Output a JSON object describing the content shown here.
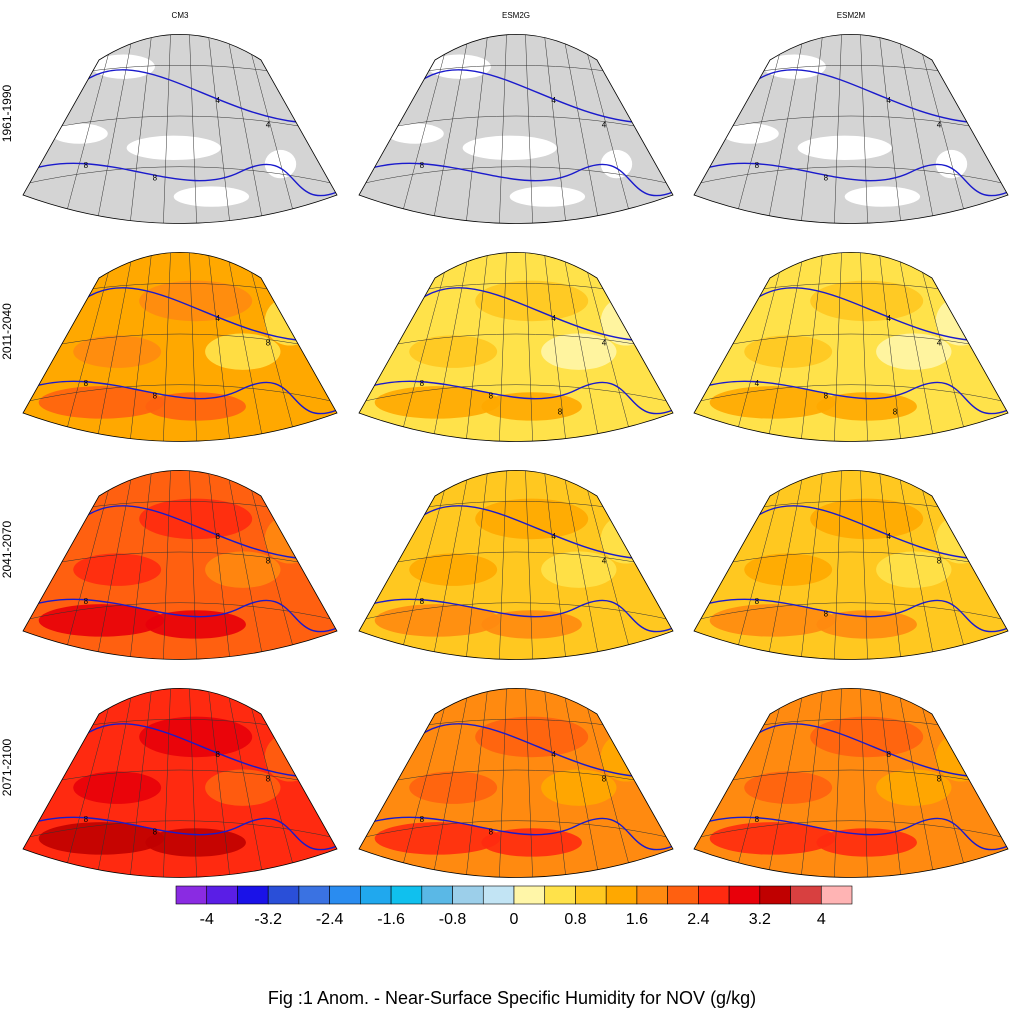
{
  "figure": {
    "caption": "Fig :1  Anom.  - Near-Surface Specific Humidity for NOV (g/kg)"
  },
  "chart_data": {
    "type": "heatmap",
    "title": "Fig :1  Anom.  - Near-Surface Specific Humidity for NOV (g/kg)",
    "variable": "Near-Surface Specific Humidity anomaly",
    "month": "NOV",
    "units": "g/kg",
    "columns": [
      "CM3",
      "ESM2G",
      "ESM2M"
    ],
    "rows": [
      "1961-1990",
      "2011-2040",
      "2041-2070",
      "2071-2100"
    ],
    "baseline_row": "1961-1990",
    "baseline_contours": [
      4,
      8
    ],
    "panels": [
      {
        "model": "CM3",
        "period": "1961-1990",
        "dominant_anomaly": null,
        "contour_labels": [
          "4",
          "4",
          "8",
          "8"
        ]
      },
      {
        "model": "ESM2G",
        "period": "1961-1990",
        "dominant_anomaly": null,
        "contour_labels": [
          "4",
          "4",
          "8"
        ]
      },
      {
        "model": "ESM2M",
        "period": "1961-1990",
        "dominant_anomaly": null,
        "contour_labels": [
          "4",
          "4",
          "8",
          "8"
        ]
      },
      {
        "model": "CM3",
        "period": "2011-2040",
        "dominant_anomaly": 1.2,
        "contour_labels": [
          "4",
          "8",
          "8",
          "8"
        ]
      },
      {
        "model": "ESM2G",
        "period": "2011-2040",
        "dominant_anomaly": 0.6,
        "contour_labels": [
          "4",
          "4",
          "8",
          "8",
          "8"
        ]
      },
      {
        "model": "ESM2M",
        "period": "2011-2040",
        "dominant_anomaly": 0.6,
        "contour_labels": [
          "4",
          "4",
          "4",
          "8",
          "8"
        ]
      },
      {
        "model": "CM3",
        "period": "2041-2070",
        "dominant_anomaly": 2.0,
        "contour_labels": [
          "8",
          "8",
          "8"
        ]
      },
      {
        "model": "ESM2G",
        "period": "2041-2070",
        "dominant_anomaly": 1.0,
        "contour_labels": [
          "4",
          "4",
          "8"
        ]
      },
      {
        "model": "ESM2M",
        "period": "2041-2070",
        "dominant_anomaly": 1.0,
        "contour_labels": [
          "4",
          "8",
          "8",
          "8"
        ]
      },
      {
        "model": "CM3",
        "period": "2071-2100",
        "dominant_anomaly": 2.6,
        "contour_labels": [
          "8",
          "8",
          "8",
          "8"
        ]
      },
      {
        "model": "ESM2G",
        "period": "2071-2100",
        "dominant_anomaly": 1.6,
        "contour_labels": [
          "4",
          "8",
          "8",
          "8"
        ]
      },
      {
        "model": "ESM2M",
        "period": "2071-2100",
        "dominant_anomaly": 1.6,
        "contour_labels": [
          "8",
          "8",
          "8"
        ]
      }
    ],
    "colorbar": {
      "boundaries": [
        -4.4,
        -4,
        -3.6,
        -3.2,
        -2.8,
        -2.4,
        -2,
        -1.6,
        -1.2,
        -0.8,
        -0.4,
        0,
        0.4,
        0.8,
        1.2,
        1.6,
        2,
        2.4,
        2.8,
        3.2,
        3.6,
        4,
        4.4
      ],
      "colors": [
        "#8a2be2",
        "#5a1ee6",
        "#1a12e8",
        "#2a4fd8",
        "#3a72e2",
        "#2a8cf0",
        "#20a8ee",
        "#10c0ee",
        "#5ab8e6",
        "#9ccfea",
        "#c2e4f4",
        "#fff6a8",
        "#ffe24a",
        "#ffc820",
        "#ffa800",
        "#ff8a10",
        "#ff6010",
        "#ff2a10",
        "#e8000a",
        "#c00000",
        "#d84040",
        "#ffb4b4"
      ],
      "tick_labels": [
        "-4",
        "-3.2",
        "-2.4",
        "-1.6",
        "-0.8",
        "0",
        "0.8",
        "1.6",
        "2.4",
        "3.2",
        "4"
      ]
    }
  }
}
